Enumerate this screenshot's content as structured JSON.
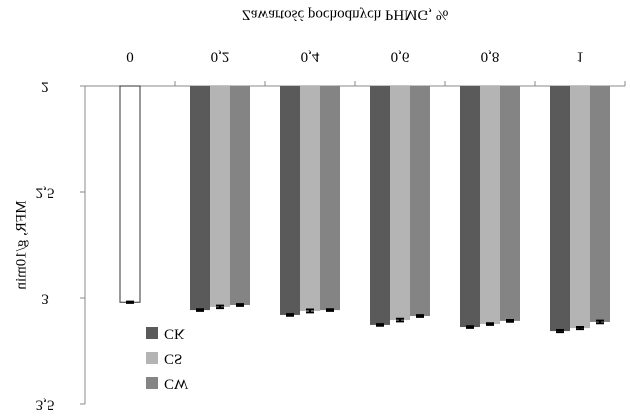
{
  "chart_data": {
    "type": "bar",
    "title": "Zawartość pochodnych PHMG, %",
    "y_label": "MFR, g/10min",
    "categories": [
      "0",
      "0,2",
      "0,4",
      "0,6",
      "0,8",
      "1"
    ],
    "series": [
      {
        "name": "CK",
        "color": "#5a5a5a",
        "values": [
          null,
          3.057,
          3.08,
          3.127,
          3.137,
          3.156
        ],
        "errors": [
          null,
          0.004,
          0.004,
          0.004,
          0.004,
          0.005
        ]
      },
      {
        "name": "CS",
        "color": "#b4b4b4",
        "values": [
          null,
          3.042,
          3.061,
          3.104,
          3.123,
          3.142
        ],
        "errors": [
          null,
          0.006,
          0.007,
          0.006,
          0.004,
          0.005
        ]
      },
      {
        "name": "CW",
        "color": "#848484",
        "values": [
          null,
          3.033,
          3.057,
          3.085,
          3.108,
          3.113
        ],
        "errors": [
          null,
          0.004,
          0.004,
          0.004,
          0.004,
          0.006
        ]
      },
      {
        "color": "#ffffff",
        "values": [
          3.02,
          null,
          null,
          null,
          null,
          null
        ],
        "errors": [
          0.003,
          null,
          null,
          null,
          null,
          null
        ]
      }
    ],
    "ylim": [
      2,
      3.5
    ],
    "yticks": [
      2,
      {
        "value": 2.5,
        "label": "2,5"
      },
      3,
      {
        "value": 3.5,
        "label": "3,5"
      }
    ],
    "y_inverted": true,
    "text_flipped": true,
    "legend": "bottom-left"
  }
}
